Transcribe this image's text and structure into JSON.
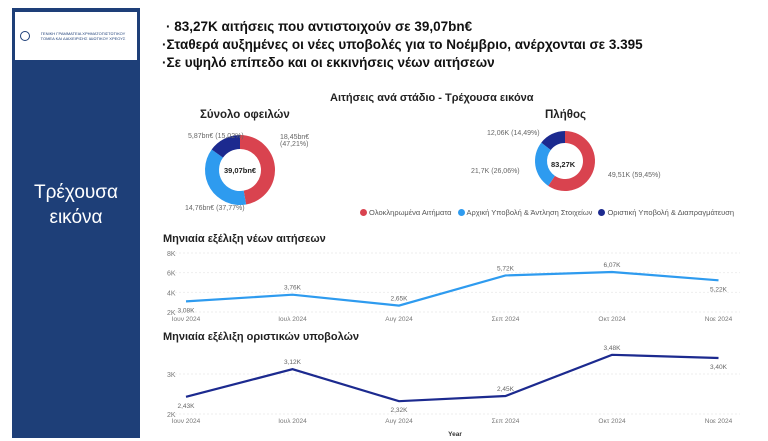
{
  "sidebar": {
    "logo_text": "ΓΕΝΙΚΗ ΓΡΑΜΜΑΤΕΙΑ ΧΡΗΜΑΤΟΠΙΣΤΩΤΙΚΟΥ ΤΟΜΕΑ ΚΑΙ ΔΙΑΧΕΙΡΙΣΗΣ ΙΔΙΩΤΙΚΟΥ ΧΡΕΟΥΣ",
    "title": "Τρέχουσα εικόνα"
  },
  "bullets": [
    "· 83,27K αιτήσεις που αντιστοιχούν σε 39,07bn€",
    "·Σταθερά αυξημένες οι νέες υποβολές για το Νοέμβριο, ανέρχονται σε 3.395",
    "·Σε υψηλό επίπεδο και οι εκκινήσεις νέων αιτήσεων"
  ],
  "colors": {
    "completed": "#d9434f",
    "initial": "#2e9bef",
    "final": "#1c2a8f",
    "sidebar": "#1e3f78"
  },
  "chart_data": [
    {
      "type": "pie",
      "title": "Αιτήσεις ανά στάδιο - Τρέχουσα εικόνα",
      "subtitle": "Σύνολο οφειλών",
      "center": "39,07bn€",
      "values": [
        18.45,
        14.76,
        5.87
      ],
      "labels": [
        "18,45bn€ (47,21%)",
        "14,76bn€ (37,77%)",
        "5,87bn€ (15,02%)"
      ]
    },
    {
      "type": "pie",
      "subtitle": "Πλήθος",
      "center": "83,27K",
      "values": [
        49.51,
        21.7,
        12.06
      ],
      "labels": [
        "49,51K (59,45%)",
        "21,7K (26,06%)",
        "12,06K (14,49%)"
      ]
    },
    {
      "type": "line",
      "title": "Μηνιαία εξέλιξη νέων αιτήσεων",
      "x": [
        "Ιουν 2024",
        "Ιουλ 2024",
        "Αυγ 2024",
        "Σεπ 2024",
        "Οκτ 2024",
        "Νοε 2024"
      ],
      "values": [
        3.08,
        3.76,
        2.65,
        5.72,
        6.07,
        5.22
      ],
      "labels": [
        "3,08K",
        "3,76K",
        "2,65K",
        "5,72K",
        "6,07K",
        "5,22K"
      ],
      "yticks": [
        "2K",
        "4K",
        "6K",
        "8K"
      ],
      "ylim": [
        2,
        8
      ]
    },
    {
      "type": "line",
      "title": "Μηνιαία εξέλιξη οριστικών υποβολών",
      "x": [
        "Ιουν 2024",
        "Ιουλ 2024",
        "Αυγ 2024",
        "Σεπ 2024",
        "Οκτ 2024",
        "Νοε 2024"
      ],
      "values": [
        2.43,
        3.12,
        2.32,
        2.45,
        3.48,
        3.4
      ],
      "labels": [
        "2,43K",
        "3,12K",
        "2,32K",
        "2,45K",
        "3,48K",
        "3,40K"
      ],
      "yticks": [
        "2K",
        "3K"
      ],
      "ylim": [
        2,
        3.6
      ],
      "xlabel": "Year"
    }
  ],
  "legend": [
    "Ολοκληρωμένα Αιτήματα",
    "Αρχική Υποβολή & Άντληση Στοιχείων",
    "Οριστική Υποβολή & Διαπραγμάτευση"
  ]
}
